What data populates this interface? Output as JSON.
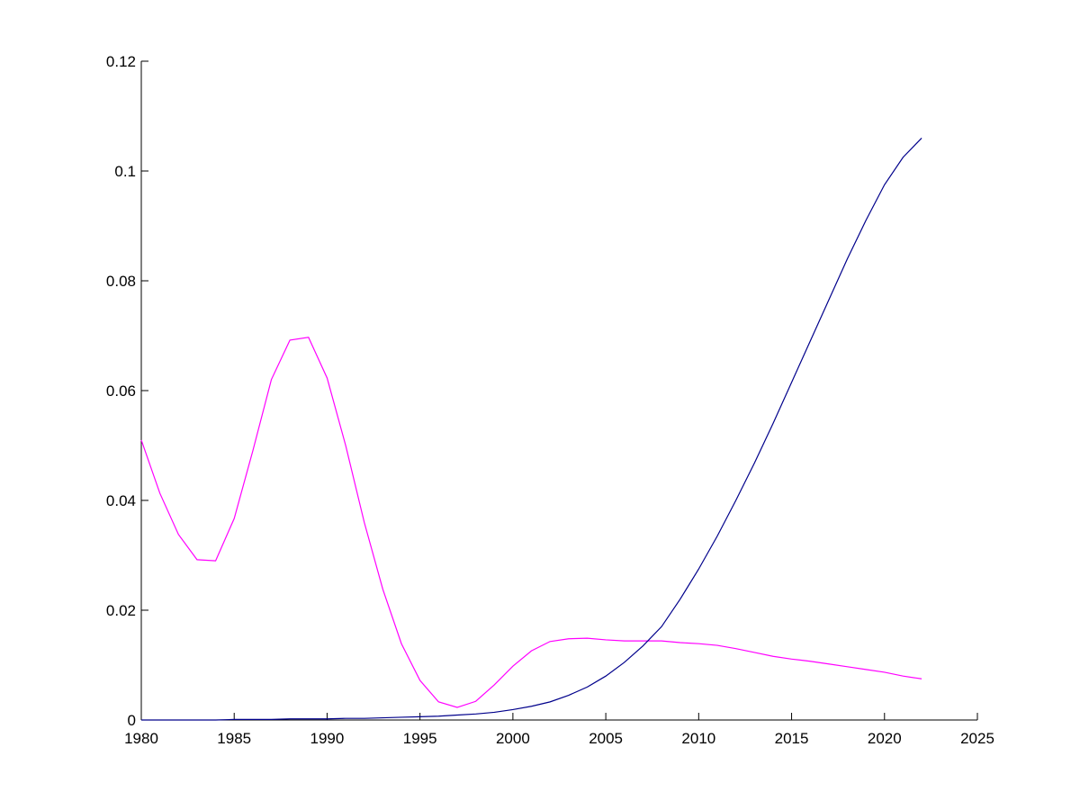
{
  "chart_data": {
    "type": "line",
    "x": [
      1980,
      1981,
      1982,
      1983,
      1984,
      1985,
      1986,
      1987,
      1988,
      1989,
      1990,
      1991,
      1992,
      1993,
      1994,
      1995,
      1996,
      1997,
      1998,
      1999,
      2000,
      2001,
      2002,
      2003,
      2004,
      2005,
      2006,
      2007,
      2008,
      2009,
      2010,
      2011,
      2012,
      2013,
      2014,
      2015,
      2016,
      2017,
      2018,
      2019,
      2020,
      2021,
      2022
    ],
    "series": [
      {
        "color": "#ff00ff",
        "values": [
          0.051,
          0.0413,
          0.0338,
          0.0292,
          0.029,
          0.0367,
          0.049,
          0.062,
          0.0692,
          0.0697,
          0.0623,
          0.05,
          0.036,
          0.0238,
          0.0139,
          0.0072,
          0.0033,
          0.0023,
          0.0034,
          0.0064,
          0.0098,
          0.0126,
          0.0143,
          0.0148,
          0.0149,
          0.0146,
          0.0144,
          0.0144,
          0.0144,
          0.0141,
          0.0139,
          0.0136,
          0.013,
          0.0123,
          0.0116,
          0.0111,
          0.0107,
          0.0102,
          0.0097,
          0.0092,
          0.0087,
          0.008,
          0.0075
        ]
      },
      {
        "color": "#00008b",
        "values": [
          0,
          0,
          0,
          0,
          0,
          0.0001,
          0.0001,
          0.0001,
          0.0002,
          0.0002,
          0.0002,
          0.0003,
          0.0003,
          0.0004,
          0.0005,
          0.0006,
          0.0007,
          0.0009,
          0.0011,
          0.0014,
          0.0019,
          0.0025,
          0.0033,
          0.0045,
          0.006,
          0.008,
          0.0105,
          0.0135,
          0.017,
          0.022,
          0.0275,
          0.0335,
          0.04,
          0.0468,
          0.054,
          0.0615,
          0.069,
          0.0765,
          0.084,
          0.091,
          0.0975,
          0.1025,
          0.106
        ]
      }
    ],
    "xlim": [
      1980,
      2025
    ],
    "xticks": [
      1980,
      1985,
      1990,
      1995,
      2000,
      2005,
      2010,
      2015,
      2020,
      2025
    ],
    "ylim": [
      0,
      0.12
    ],
    "yticks": [
      0,
      0.02,
      0.04,
      0.06,
      0.08,
      0.1,
      0.12
    ]
  }
}
